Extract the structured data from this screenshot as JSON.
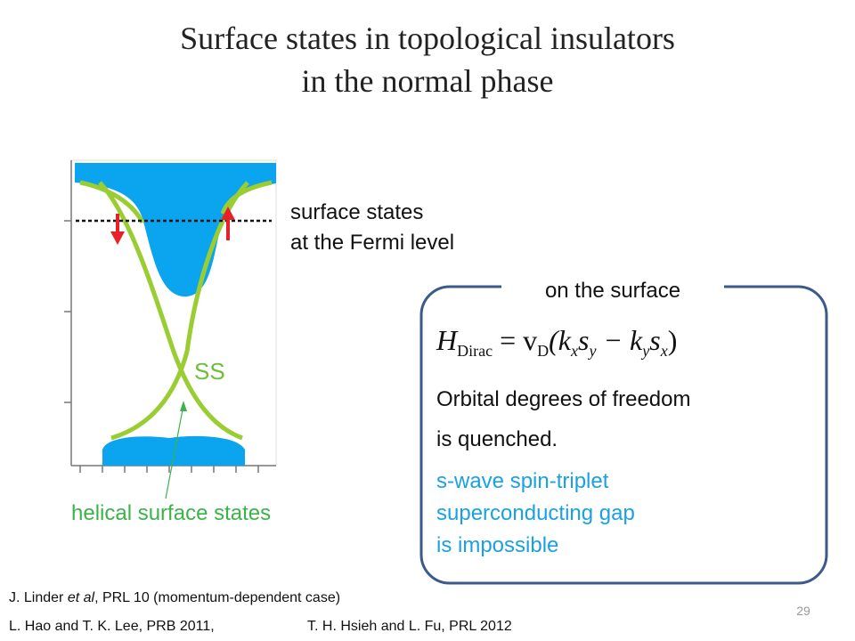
{
  "title": {
    "line1": "Surface states in topological insulators",
    "line2": "in the normal phase"
  },
  "figure": {
    "band_label": "SS",
    "fermi_label": [
      "surface states",
      "at the Fermi level"
    ],
    "helical_label": "helical surface states"
  },
  "box": {
    "label": "on the surface",
    "equation": [
      {
        "t": "H",
        "sub": "Dirac"
      },
      {
        "t": " = v",
        "sub": "D"
      },
      {
        "t": "(k",
        "sub": "x"
      },
      {
        "t": "s",
        "sub": "y"
      },
      {
        "t": " − k",
        "sub": "y"
      },
      {
        "t": "s",
        "sub": "x"
      },
      {
        "t": ")"
      }
    ],
    "text": [
      "Orbital degrees of freedom",
      "is quenched."
    ],
    "highlight": [
      "s-wave spin-triplet",
      "superconducting gap",
      "is impossible"
    ]
  },
  "references": [
    [
      "J. Linder ",
      "et al",
      ", PRL 10 (momentum-dependent case)"
    ],
    [
      "L. Hao and T. K. Lee, PRB 2011,",
      "T. H. Hsieh and L. Fu, PRL 2012"
    ]
  ],
  "page_number": "29"
}
